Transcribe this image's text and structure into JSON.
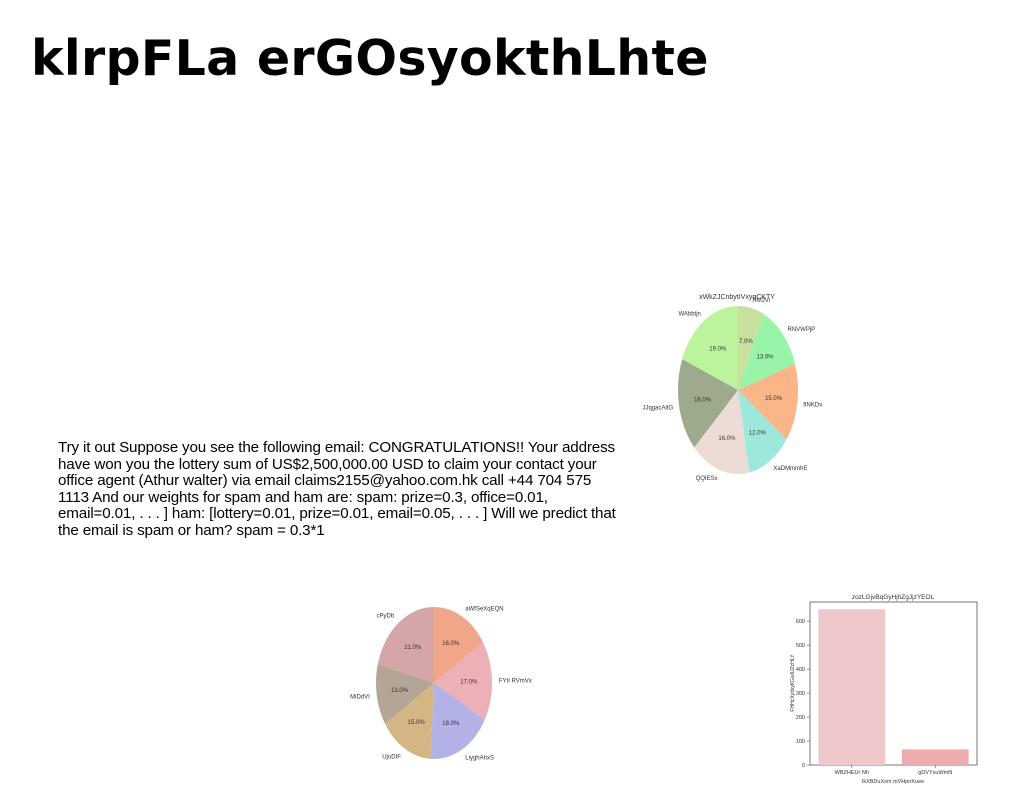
{
  "title": "klrpFLa erGOsyokthLhte",
  "body_text": "Try it out Suppose you see the following email: CONGRATULATIONS!! Your address have won you the lottery sum of US$2,500,000.00 USD to claim your contact your office agent (Athur walter) via email claims2155@yahoo.com.hk call +44 704 575 1113 And our weights for spam and ham are: spam: prize=0.3, office=0.01, email=0.01, . . . ] ham: [lottery=0.01, prize=0.01, email=0.05, . . . ] Will we predict that the email is spam or ham? spam = 0.3*1",
  "chart_data": [
    {
      "type": "pie",
      "title": "xWkZJCnbytIVxyqCKTY",
      "labels": [
        "RMJVi",
        "RNVWPjP",
        "fINKDv",
        "XaDMmmhE",
        "QQIESx",
        "JJqgacAltG",
        "WAbbtjn"
      ],
      "values": [
        7.0,
        13.0,
        15.0,
        12.0,
        16.0,
        18.0,
        19.0
      ],
      "value_labels": [
        "7.0%",
        "13.0%",
        "15.0%",
        "12.0%",
        "16.0%",
        "18.0%",
        "19.0%"
      ],
      "colors": [
        "#c9df9c",
        "#98f4a8",
        "#fbb687",
        "#9ce8dc",
        "#eddcd6",
        "#9eaa8e",
        "#bbf49c"
      ]
    },
    {
      "type": "pie",
      "title": "",
      "labels": [
        "aWfSeXqEQN",
        "FYtI RVmVx",
        "LiyghAhxS",
        "UjoDIF",
        "MiDdVI",
        "cPyDb"
      ],
      "values": [
        16.0,
        17.0,
        18.0,
        15.0,
        13.0,
        21.0
      ],
      "value_labels": [
        "16.0%",
        "17.0%",
        "18.0%",
        "15.0%",
        "13.0%",
        "21.0%"
      ],
      "colors": [
        "#f2a689",
        "#edb0b7",
        "#b3b2e6",
        "#d4b584",
        "#b4a596",
        "#d6a5a7"
      ]
    },
    {
      "type": "bar",
      "title": "zozLGjvBqGyHjhZgJjzYEOL",
      "categories": [
        "WBZHEUr Nh",
        "gDVYsuWmN"
      ],
      "values": [
        650,
        65
      ],
      "xlabel": "IkXBDuXsm mVHpnKuee",
      "ylabel": "FHHcXydxyKGwIlJZcHLY",
      "ylim": [
        0,
        680
      ],
      "yticks": [
        0,
        100,
        200,
        300,
        400,
        500,
        600
      ],
      "colors": [
        "#efc8cc",
        "#ecadae"
      ]
    }
  ]
}
